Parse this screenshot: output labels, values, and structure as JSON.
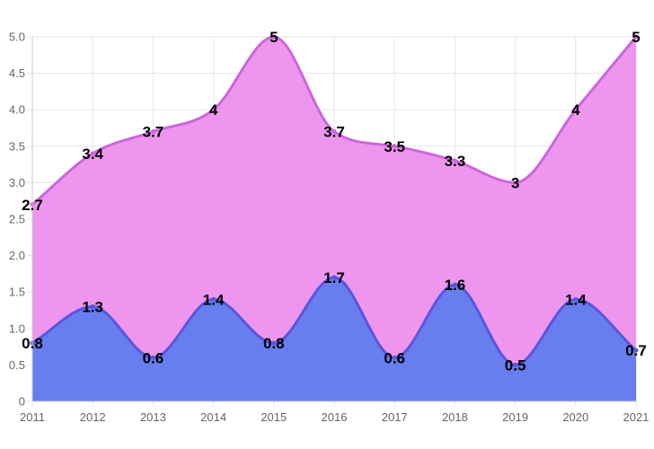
{
  "chart_data": {
    "type": "area",
    "title": "",
    "xlabel": "",
    "ylabel": "",
    "x": [
      2011,
      2012,
      2013,
      2014,
      2015,
      2016,
      2017,
      2018,
      2019,
      2020,
      2021
    ],
    "xtick_labels": [
      "2011",
      "2012",
      "2013",
      "2014",
      "2015",
      "2016",
      "2017",
      "2018",
      "2019",
      "2020",
      "2021"
    ],
    "ylim": [
      0,
      5
    ],
    "ytick_labels": [
      "0",
      "0.5",
      "1.0",
      "1.5",
      "2.0",
      "2.5",
      "3.0",
      "3.5",
      "4.0",
      "4.5",
      "5.0"
    ],
    "grid": true,
    "legend": "none",
    "series": [
      {
        "values": [
          2.7,
          3.4,
          3.7,
          4,
          5,
          3.7,
          3.5,
          3.3,
          3,
          4,
          5
        ],
        "labels": [
          "2.7",
          "3.4",
          "3.7",
          "4",
          "5",
          "3.7",
          "3.5",
          "3.3",
          "3",
          "4",
          "5"
        ],
        "fill": "#ee96ee",
        "stroke": "#cc66dd"
      },
      {
        "values": [
          0.8,
          1.3,
          0.6,
          1.4,
          0.8,
          1.7,
          0.6,
          1.6,
          0.5,
          1.4,
          0.7
        ],
        "labels": [
          "0.8",
          "1.3",
          "0.6",
          "1.4",
          "0.8",
          "1.7",
          "0.6",
          "1.6",
          "0.5",
          "1.4",
          "0.7"
        ],
        "fill": "#667eee",
        "stroke": "#5b55dd"
      }
    ]
  }
}
